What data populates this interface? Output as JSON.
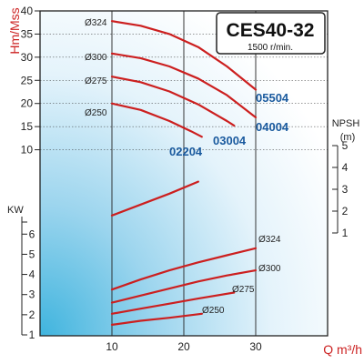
{
  "chart_data": [
    {
      "type": "line",
      "title": "CES40-32",
      "subtitle": "1500 r/min.",
      "ylabel": "Hm/Mss",
      "xlabel": "Q m³/h",
      "x_ticks": [
        "10",
        "20",
        "30"
      ],
      "y_ticks": [
        "10",
        "15",
        "20",
        "25",
        "30",
        "35",
        "40"
      ],
      "xlim": [
        0,
        40
      ],
      "ylim": [
        5,
        40
      ],
      "grid": true,
      "series": [
        {
          "name": "Ø324",
          "x": [
            10,
            14,
            18,
            22,
            26,
            30
          ],
          "y": [
            37.8,
            36.8,
            35.0,
            32.2,
            28.0,
            23.0
          ]
        },
        {
          "name": "Ø300",
          "x": [
            10,
            14,
            18,
            22,
            26,
            30
          ],
          "y": [
            30.8,
            29.8,
            28.0,
            25.4,
            21.8,
            17.0
          ]
        },
        {
          "name": "Ø275",
          "x": [
            10,
            14,
            18,
            22,
            26,
            27
          ],
          "y": [
            25.8,
            24.6,
            22.6,
            19.8,
            16.2,
            15.2
          ]
        },
        {
          "name": "Ø250",
          "x": [
            10,
            14,
            18,
            21,
            22.5
          ],
          "y": [
            20.0,
            18.6,
            16.2,
            14.0,
            12.8
          ]
        }
      ],
      "model_labels": [
        "05504",
        "04004",
        "03004",
        "02204"
      ]
    },
    {
      "type": "line",
      "ylabel": "KW",
      "y_ticks": [
        "1",
        "2",
        "3",
        "4",
        "5",
        "6"
      ],
      "ylim": [
        1,
        6.6
      ],
      "series": [
        {
          "name": "Ø324",
          "x": [
            10,
            14,
            18,
            22,
            26,
            30
          ],
          "y": [
            3.25,
            3.75,
            4.2,
            4.6,
            4.95,
            5.3
          ]
        },
        {
          "name": "Ø300",
          "x": [
            10,
            14,
            18,
            22,
            26,
            30
          ],
          "y": [
            2.6,
            2.95,
            3.3,
            3.65,
            3.95,
            4.2
          ]
        },
        {
          "name": "Ø275",
          "x": [
            10,
            14,
            18,
            22,
            27
          ],
          "y": [
            2.05,
            2.3,
            2.55,
            2.8,
            3.1
          ]
        },
        {
          "name": "Ø250",
          "x": [
            10,
            14,
            18,
            22.5
          ],
          "y": [
            1.5,
            1.7,
            1.85,
            2.05
          ]
        }
      ]
    },
    {
      "type": "line",
      "ylabel": "NPSH",
      "yunit": "(m)",
      "y_ticks": [
        "1",
        "2",
        "3",
        "4",
        "5"
      ],
      "ylim": [
        1,
        5
      ],
      "series": [
        {
          "x": [
            10,
            14,
            18,
            22
          ],
          "y": [
            1.8,
            2.3,
            2.8,
            3.35
          ]
        }
      ]
    }
  ]
}
